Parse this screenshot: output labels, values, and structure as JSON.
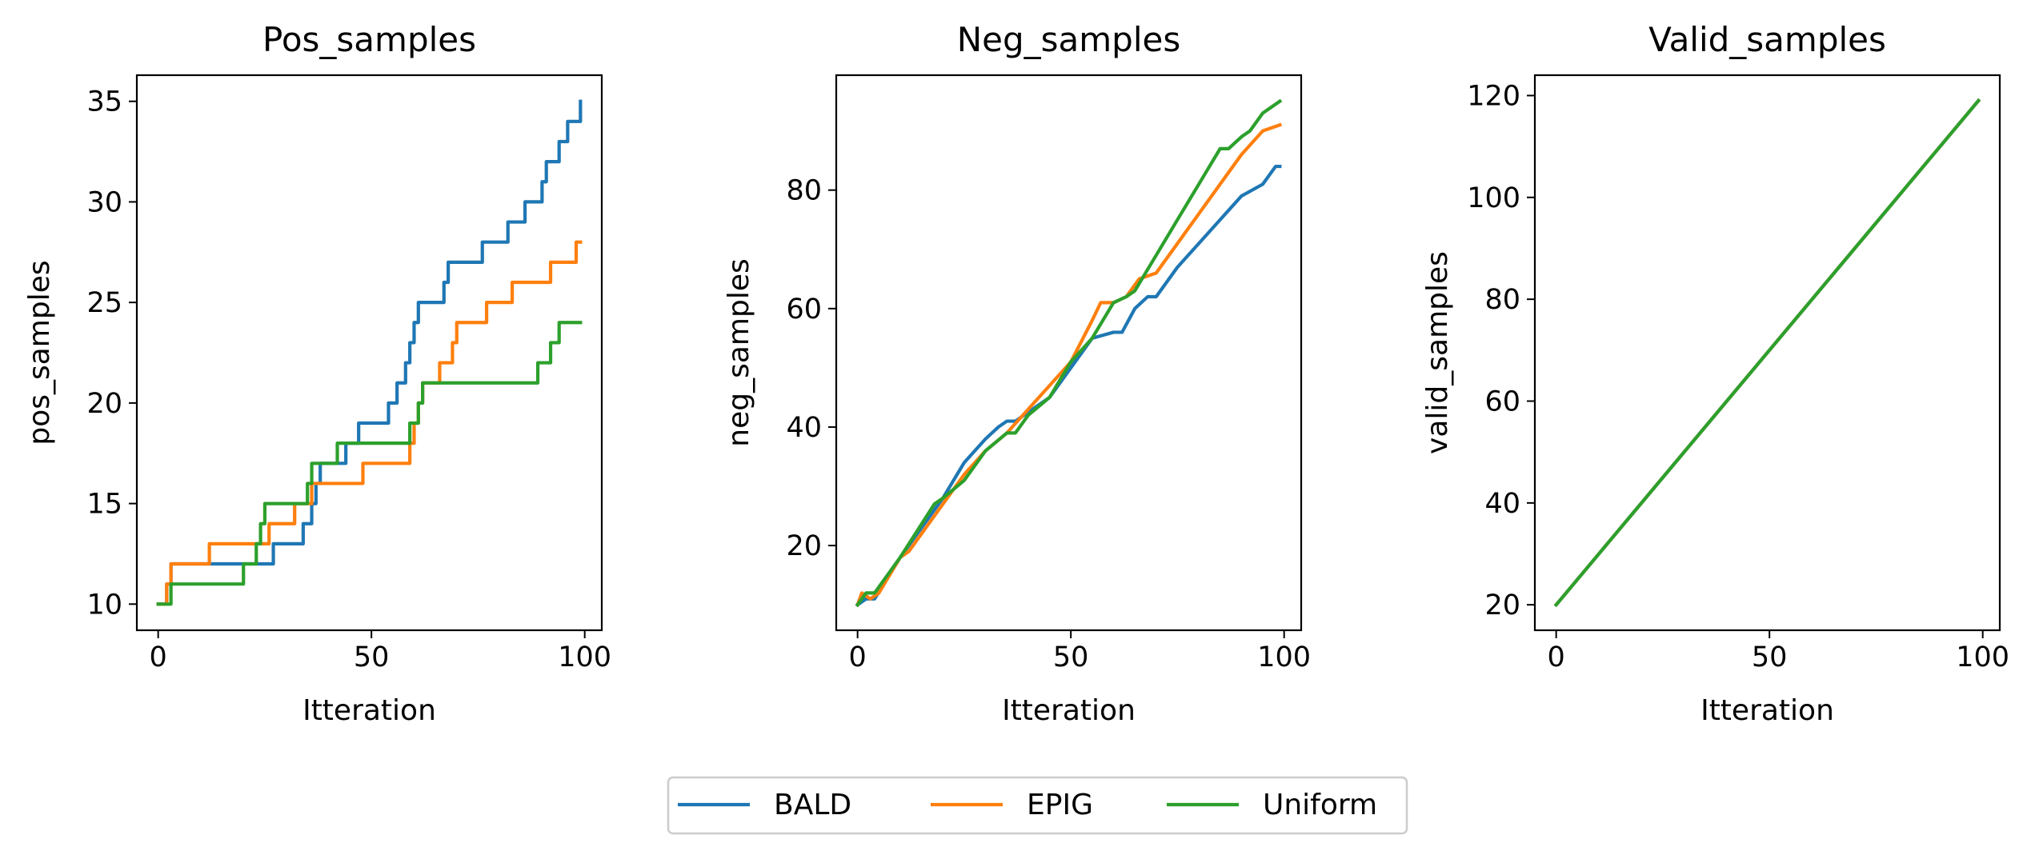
{
  "chart_data": [
    {
      "type": "line",
      "title": "Pos_samples",
      "xlabel": "Itteration",
      "ylabel": "pos_samples",
      "xlim": [
        -5,
        104
      ],
      "ylim": [
        8.7,
        36.3
      ],
      "xticks": [
        0,
        50,
        100
      ],
      "yticks": [
        10,
        15,
        20,
        25,
        30,
        35
      ],
      "grid": false,
      "series": [
        {
          "name": "BALD",
          "color": "#1f77b4",
          "step": true,
          "points": [
            [
              0,
              10
            ],
            [
              1,
              10
            ],
            [
              2,
              11
            ],
            [
              3,
              12
            ],
            [
              26,
              12
            ],
            [
              27,
              13
            ],
            [
              33,
              13
            ],
            [
              34,
              14
            ],
            [
              35,
              14
            ],
            [
              36,
              15
            ],
            [
              37,
              16
            ],
            [
              38,
              17
            ],
            [
              43,
              17
            ],
            [
              44,
              18
            ],
            [
              46,
              18
            ],
            [
              47,
              19
            ],
            [
              53,
              19
            ],
            [
              54,
              20
            ],
            [
              55,
              20
            ],
            [
              56,
              21
            ],
            [
              57,
              21
            ],
            [
              58,
              22
            ],
            [
              59,
              23
            ],
            [
              60,
              24
            ],
            [
              61,
              25
            ],
            [
              66,
              25
            ],
            [
              67,
              26
            ],
            [
              68,
              27
            ],
            [
              75,
              27
            ],
            [
              76,
              28
            ],
            [
              81,
              28
            ],
            [
              82,
              29
            ],
            [
              85,
              29
            ],
            [
              86,
              30
            ],
            [
              89,
              30
            ],
            [
              90,
              31
            ],
            [
              91,
              32
            ],
            [
              93,
              32
            ],
            [
              94,
              33
            ],
            [
              95,
              33
            ],
            [
              96,
              34
            ],
            [
              98,
              34
            ],
            [
              99,
              35
            ]
          ]
        },
        {
          "name": "EPIG",
          "color": "#ff7f0e",
          "step": true,
          "points": [
            [
              0,
              10
            ],
            [
              1,
              10
            ],
            [
              2,
              11
            ],
            [
              3,
              12
            ],
            [
              11,
              12
            ],
            [
              12,
              13
            ],
            [
              25,
              13
            ],
            [
              26,
              14
            ],
            [
              31,
              14
            ],
            [
              32,
              15
            ],
            [
              35,
              15
            ],
            [
              36,
              16
            ],
            [
              47,
              16
            ],
            [
              48,
              17
            ],
            [
              58,
              17
            ],
            [
              59,
              18
            ],
            [
              60,
              19
            ],
            [
              61,
              20
            ],
            [
              62,
              21
            ],
            [
              65,
              21
            ],
            [
              66,
              22
            ],
            [
              68,
              22
            ],
            [
              69,
              23
            ],
            [
              70,
              24
            ],
            [
              76,
              24
            ],
            [
              77,
              25
            ],
            [
              82,
              25
            ],
            [
              83,
              26
            ],
            [
              91,
              26
            ],
            [
              92,
              27
            ],
            [
              97,
              27
            ],
            [
              98,
              28
            ],
            [
              99,
              28
            ]
          ]
        },
        {
          "name": "Uniform",
          "color": "#2ca02c",
          "step": true,
          "points": [
            [
              0,
              10
            ],
            [
              2,
              10
            ],
            [
              3,
              11
            ],
            [
              19,
              11
            ],
            [
              20,
              12
            ],
            [
              22,
              12
            ],
            [
              23,
              13
            ],
            [
              24,
              14
            ],
            [
              25,
              15
            ],
            [
              34,
              15
            ],
            [
              35,
              16
            ],
            [
              36,
              17
            ],
            [
              41,
              17
            ],
            [
              42,
              18
            ],
            [
              58,
              18
            ],
            [
              59,
              19
            ],
            [
              60,
              19
            ],
            [
              61,
              20
            ],
            [
              62,
              21
            ],
            [
              88,
              21
            ],
            [
              89,
              22
            ],
            [
              91,
              22
            ],
            [
              92,
              23
            ],
            [
              93,
              23
            ],
            [
              94,
              24
            ],
            [
              99,
              24
            ]
          ]
        }
      ]
    },
    {
      "type": "line",
      "title": "Neg_samples",
      "xlabel": "Itteration",
      "ylabel": "neg_samples",
      "xlim": [
        -5,
        104
      ],
      "ylim": [
        5.7,
        99.4
      ],
      "xticks": [
        0,
        50,
        100
      ],
      "yticks": [
        20,
        40,
        60,
        80
      ],
      "grid": false,
      "series": [
        {
          "name": "BALD",
          "color": "#1f77b4",
          "step": false,
          "points": [
            [
              0,
              10
            ],
            [
              2,
              11
            ],
            [
              4,
              11
            ],
            [
              10,
              18
            ],
            [
              20,
              28
            ],
            [
              25,
              34
            ],
            [
              30,
              38
            ],
            [
              33,
              40
            ],
            [
              35,
              41
            ],
            [
              37,
              41
            ],
            [
              45,
              45
            ],
            [
              50,
              50
            ],
            [
              55,
              55
            ],
            [
              60,
              56
            ],
            [
              62,
              56
            ],
            [
              65,
              60
            ],
            [
              68,
              62
            ],
            [
              70,
              62
            ],
            [
              75,
              67
            ],
            [
              80,
              71
            ],
            [
              85,
              75
            ],
            [
              90,
              79
            ],
            [
              95,
              81
            ],
            [
              98,
              84
            ],
            [
              99,
              84
            ]
          ]
        },
        {
          "name": "EPIG",
          "color": "#ff7f0e",
          "step": false,
          "points": [
            [
              0,
              10
            ],
            [
              1,
              12
            ],
            [
              3,
              11
            ],
            [
              5,
              12
            ],
            [
              10,
              18
            ],
            [
              12,
              19
            ],
            [
              20,
              27
            ],
            [
              25,
              32
            ],
            [
              30,
              36
            ],
            [
              35,
              39
            ],
            [
              40,
              43
            ],
            [
              50,
              51
            ],
            [
              55,
              58
            ],
            [
              57,
              61
            ],
            [
              60,
              61
            ],
            [
              63,
              62
            ],
            [
              66,
              65
            ],
            [
              70,
              66
            ],
            [
              75,
              71
            ],
            [
              80,
              76
            ],
            [
              85,
              81
            ],
            [
              90,
              86
            ],
            [
              95,
              90
            ],
            [
              99,
              91
            ]
          ]
        },
        {
          "name": "Uniform",
          "color": "#2ca02c",
          "step": false,
          "points": [
            [
              0,
              10
            ],
            [
              2,
              12
            ],
            [
              4,
              12
            ],
            [
              10,
              18
            ],
            [
              18,
              27
            ],
            [
              20,
              28
            ],
            [
              25,
              31
            ],
            [
              30,
              36
            ],
            [
              35,
              39
            ],
            [
              37,
              39
            ],
            [
              40,
              42
            ],
            [
              45,
              45
            ],
            [
              50,
              51
            ],
            [
              55,
              55
            ],
            [
              60,
              61
            ],
            [
              63,
              62
            ],
            [
              65,
              63
            ],
            [
              70,
              69
            ],
            [
              75,
              75
            ],
            [
              80,
              81
            ],
            [
              85,
              87
            ],
            [
              87,
              87
            ],
            [
              90,
              89
            ],
            [
              92,
              90
            ],
            [
              95,
              93
            ],
            [
              99,
              95
            ]
          ]
        }
      ]
    },
    {
      "type": "line",
      "title": "Valid_samples",
      "xlabel": "Itteration",
      "ylabel": "valid_samples",
      "xlim": [
        -5,
        104
      ],
      "ylim": [
        15,
        124
      ],
      "xticks": [
        0,
        50,
        100
      ],
      "yticks": [
        20,
        40,
        60,
        80,
        100,
        120
      ],
      "grid": false,
      "series": [
        {
          "name": "BALD",
          "color": "#1f77b4",
          "step": false,
          "points": [
            [
              0,
              20
            ],
            [
              99,
              119
            ]
          ]
        },
        {
          "name": "EPIG",
          "color": "#ff7f0e",
          "step": false,
          "points": [
            [
              0,
              20
            ],
            [
              99,
              119
            ]
          ]
        },
        {
          "name": "Uniform",
          "color": "#2ca02c",
          "step": false,
          "points": [
            [
              0,
              20
            ],
            [
              99,
              119
            ]
          ]
        }
      ]
    }
  ],
  "legend": {
    "placement": "bottom-center",
    "entries": [
      {
        "label": "BALD",
        "color": "#1f77b4"
      },
      {
        "label": "EPIG",
        "color": "#ff7f0e"
      },
      {
        "label": "Uniform",
        "color": "#2ca02c"
      }
    ]
  }
}
